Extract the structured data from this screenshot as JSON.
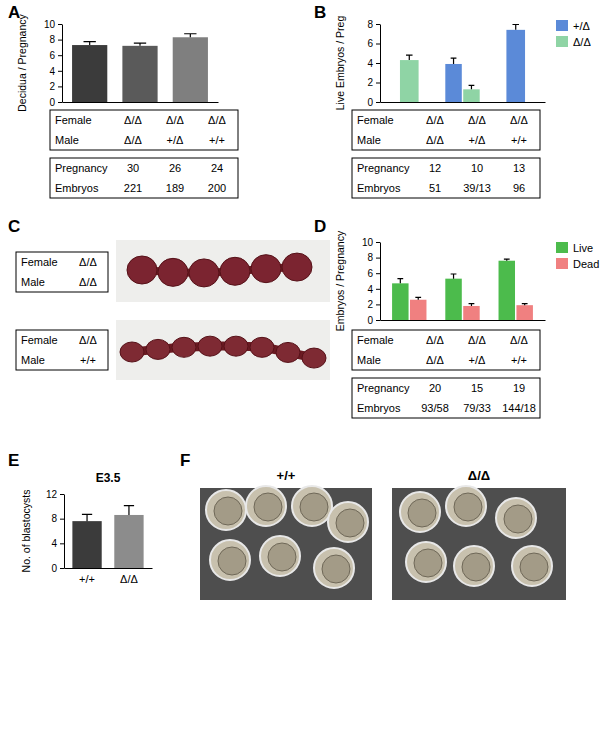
{
  "chart_data": [
    {
      "panel_label": "A",
      "type": "bar",
      "categories": [
        null,
        null,
        null
      ],
      "values": [
        7.3,
        7.2,
        8.3
      ],
      "errors": [
        0.45,
        0.35,
        0.45
      ],
      "colors": [
        "#3b3b3b",
        "#5a5a5a",
        "#7f7f7f"
      ],
      "ylabel": "Decidua / Pregnancy",
      "ylim": [
        0,
        10
      ],
      "yticks": [
        0,
        2,
        4,
        6,
        8,
        10
      ],
      "tick_labels": "y",
      "tables": [
        [
          [
            "Female",
            "Δ/Δ",
            "Δ/Δ",
            "Δ/Δ"
          ],
          [
            "Male",
            "Δ/Δ",
            "+/Δ",
            "+/+"
          ]
        ],
        [
          [
            "Pregnancy",
            30,
            26,
            24
          ],
          [
            "Embryos",
            221,
            189,
            200
          ]
        ]
      ]
    },
    {
      "panel_label": "B",
      "type": "bar",
      "categories": [
        null,
        null,
        null
      ],
      "series": [
        {
          "name": "+/Δ",
          "color": "#5b8ad8",
          "values": [
            null,
            3.9,
            7.4
          ],
          "errors": [
            null,
            0.6,
            0.55
          ]
        },
        {
          "name": "Δ/Δ",
          "color": "#8fd4a5",
          "values": [
            4.3,
            1.3,
            null
          ],
          "errors": [
            0.5,
            0.4,
            null
          ]
        }
      ],
      "ylabel": "Live Embryos / Preg",
      "ylim": [
        0,
        8
      ],
      "yticks": [
        0,
        2,
        4,
        6,
        8
      ],
      "legend": "top-right",
      "tick_labels": "y",
      "tables": [
        [
          [
            "Female",
            "Δ/Δ",
            "Δ/Δ",
            "Δ/Δ"
          ],
          [
            "Male",
            "Δ/Δ",
            "+/Δ",
            "+/+"
          ]
        ],
        [
          [
            "Pregnancy",
            12,
            10,
            13
          ],
          [
            "Embryos",
            51,
            "39/13",
            96
          ]
        ]
      ]
    },
    {
      "panel_label": "D",
      "type": "bar",
      "categories": [
        null,
        null,
        null
      ],
      "series": [
        {
          "name": "Live",
          "color": "#4cbb4c",
          "values": [
            4.7,
            5.3,
            7.6
          ],
          "errors": [
            0.6,
            0.6,
            0.2
          ]
        },
        {
          "name": "Dead",
          "color": "#f08080",
          "values": [
            2.6,
            1.8,
            1.9
          ],
          "errors": [
            0.3,
            0.3,
            0.2
          ]
        }
      ],
      "ylabel": "Embryos / Pregnancy",
      "ylim": [
        0,
        10
      ],
      "yticks": [
        0,
        2,
        4,
        6,
        8,
        10
      ],
      "legend": "top-right",
      "tick_labels": "y",
      "tables": [
        [
          [
            "Female",
            "Δ/Δ",
            "Δ/Δ",
            "Δ/Δ"
          ],
          [
            "Male",
            "Δ/Δ",
            "+/Δ",
            "+/+"
          ]
        ],
        [
          [
            "Pregnancy",
            20,
            15,
            19
          ],
          [
            "Embryos",
            "93/58",
            "79/33",
            "144/18"
          ]
        ]
      ]
    },
    {
      "panel_label": "E",
      "type": "bar",
      "title": "E3.5",
      "categories": [
        "+/+",
        "Δ/Δ"
      ],
      "values": [
        7.6,
        8.6
      ],
      "errors": [
        1.1,
        1.5
      ],
      "colors": [
        "#3b3b3b",
        "#8c8c8c"
      ],
      "ylabel": "No. of blastocysts",
      "ylim": [
        0,
        12
      ],
      "yticks": [
        0,
        4,
        8,
        12
      ]
    }
  ],
  "image_panels": [
    {
      "panel_label": "C",
      "tables": [
        [
          [
            "Female",
            "Δ/Δ"
          ],
          [
            "Male",
            "Δ/Δ"
          ]
        ],
        [
          [
            "Female",
            "Δ/Δ"
          ],
          [
            "Male",
            "+/+"
          ]
        ]
      ]
    },
    {
      "panel_label": "F",
      "captions": [
        "+/+",
        "Δ/Δ"
      ]
    }
  ]
}
